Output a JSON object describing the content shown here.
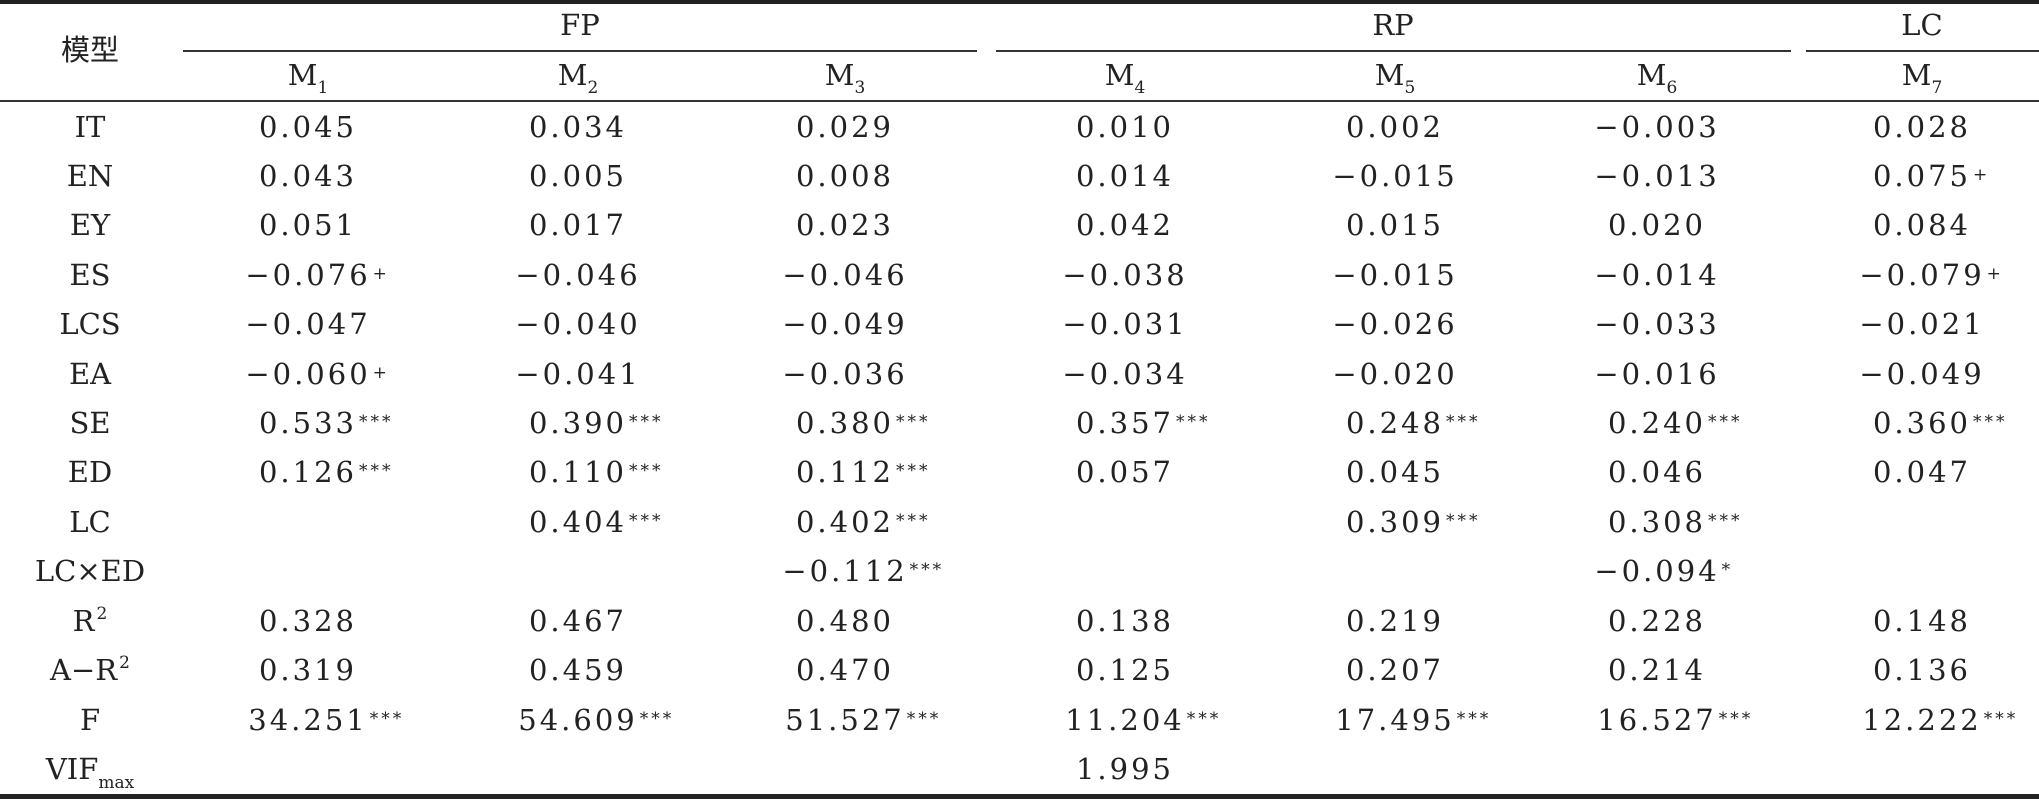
{
  "table": {
    "corner": "模型",
    "groups": [
      {
        "label": "FP"
      },
      {
        "label": "RP"
      },
      {
        "label": "LC"
      }
    ],
    "models": [
      {
        "base": "M",
        "sub": "1"
      },
      {
        "base": "M",
        "sub": "2"
      },
      {
        "base": "M",
        "sub": "3"
      },
      {
        "base": "M",
        "sub": "4"
      },
      {
        "base": "M",
        "sub": "5"
      },
      {
        "base": "M",
        "sub": "6"
      },
      {
        "base": "M",
        "sub": "7"
      }
    ],
    "rows": [
      {
        "label": "IT",
        "label_sup": "",
        "label_sub": "",
        "cells": [
          {
            "v": "0.045",
            "s": ""
          },
          {
            "v": "0.034",
            "s": ""
          },
          {
            "v": "0.029",
            "s": ""
          },
          {
            "v": "0.010",
            "s": ""
          },
          {
            "v": "0.002",
            "s": ""
          },
          {
            "v": "−0.003",
            "s": ""
          },
          {
            "v": "0.028",
            "s": ""
          }
        ]
      },
      {
        "label": "EN",
        "label_sup": "",
        "label_sub": "",
        "cells": [
          {
            "v": "0.043",
            "s": ""
          },
          {
            "v": "0.005",
            "s": ""
          },
          {
            "v": "0.008",
            "s": ""
          },
          {
            "v": "0.014",
            "s": ""
          },
          {
            "v": "−0.015",
            "s": ""
          },
          {
            "v": "−0.013",
            "s": ""
          },
          {
            "v": "0.075",
            "s": "+"
          }
        ]
      },
      {
        "label": "EY",
        "label_sup": "",
        "label_sub": "",
        "cells": [
          {
            "v": "0.051",
            "s": ""
          },
          {
            "v": "0.017",
            "s": ""
          },
          {
            "v": "0.023",
            "s": ""
          },
          {
            "v": "0.042",
            "s": ""
          },
          {
            "v": "0.015",
            "s": ""
          },
          {
            "v": "0.020",
            "s": ""
          },
          {
            "v": "0.084",
            "s": ""
          }
        ]
      },
      {
        "label": "ES",
        "label_sup": "",
        "label_sub": "",
        "cells": [
          {
            "v": "−0.076",
            "s": "+"
          },
          {
            "v": "−0.046",
            "s": ""
          },
          {
            "v": "−0.046",
            "s": ""
          },
          {
            "v": "−0.038",
            "s": ""
          },
          {
            "v": "−0.015",
            "s": ""
          },
          {
            "v": "−0.014",
            "s": ""
          },
          {
            "v": "−0.079",
            "s": "+"
          }
        ]
      },
      {
        "label": "LCS",
        "label_sup": "",
        "label_sub": "",
        "cells": [
          {
            "v": "−0.047",
            "s": ""
          },
          {
            "v": "−0.040",
            "s": ""
          },
          {
            "v": "−0.049",
            "s": ""
          },
          {
            "v": "−0.031",
            "s": ""
          },
          {
            "v": "−0.026",
            "s": ""
          },
          {
            "v": "−0.033",
            "s": ""
          },
          {
            "v": "−0.021",
            "s": ""
          }
        ]
      },
      {
        "label": "EA",
        "label_sup": "",
        "label_sub": "",
        "cells": [
          {
            "v": "−0.060",
            "s": "+"
          },
          {
            "v": "−0.041",
            "s": ""
          },
          {
            "v": "−0.036",
            "s": ""
          },
          {
            "v": "−0.034",
            "s": ""
          },
          {
            "v": "−0.020",
            "s": ""
          },
          {
            "v": "−0.016",
            "s": ""
          },
          {
            "v": "−0.049",
            "s": ""
          }
        ]
      },
      {
        "label": "SE",
        "label_sup": "",
        "label_sub": "",
        "cells": [
          {
            "v": "0.533",
            "s": "***"
          },
          {
            "v": "0.390",
            "s": "***"
          },
          {
            "v": "0.380",
            "s": "***"
          },
          {
            "v": "0.357",
            "s": "***"
          },
          {
            "v": "0.248",
            "s": "***"
          },
          {
            "v": "0.240",
            "s": "***"
          },
          {
            "v": "0.360",
            "s": "***"
          }
        ]
      },
      {
        "label": "ED",
        "label_sup": "",
        "label_sub": "",
        "cells": [
          {
            "v": "0.126",
            "s": "***"
          },
          {
            "v": "0.110",
            "s": "***"
          },
          {
            "v": "0.112",
            "s": "***"
          },
          {
            "v": "0.057",
            "s": ""
          },
          {
            "v": "0.045",
            "s": ""
          },
          {
            "v": "0.046",
            "s": ""
          },
          {
            "v": "0.047",
            "s": ""
          }
        ]
      },
      {
        "label": "LC",
        "label_sup": "",
        "label_sub": "",
        "cells": [
          {
            "v": "",
            "s": ""
          },
          {
            "v": "0.404",
            "s": "***"
          },
          {
            "v": "0.402",
            "s": "***"
          },
          {
            "v": "",
            "s": ""
          },
          {
            "v": "0.309",
            "s": "***"
          },
          {
            "v": "0.308",
            "s": "***"
          },
          {
            "v": "",
            "s": ""
          }
        ]
      },
      {
        "label": "LC×ED",
        "label_sup": "",
        "label_sub": "",
        "cells": [
          {
            "v": "",
            "s": ""
          },
          {
            "v": "",
            "s": ""
          },
          {
            "v": "−0.112",
            "s": "***"
          },
          {
            "v": "",
            "s": ""
          },
          {
            "v": "",
            "s": ""
          },
          {
            "v": "−0.094",
            "s": "*"
          },
          {
            "v": "",
            "s": ""
          }
        ]
      },
      {
        "label": "R",
        "label_sup": "2",
        "label_sub": "",
        "cells": [
          {
            "v": "0.328",
            "s": ""
          },
          {
            "v": "0.467",
            "s": ""
          },
          {
            "v": "0.480",
            "s": ""
          },
          {
            "v": "0.138",
            "s": ""
          },
          {
            "v": "0.219",
            "s": ""
          },
          {
            "v": "0.228",
            "s": ""
          },
          {
            "v": "0.148",
            "s": ""
          }
        ]
      },
      {
        "label": "A−R",
        "label_sup": "2",
        "label_sub": "",
        "cells": [
          {
            "v": "0.319",
            "s": ""
          },
          {
            "v": "0.459",
            "s": ""
          },
          {
            "v": "0.470",
            "s": ""
          },
          {
            "v": "0.125",
            "s": ""
          },
          {
            "v": "0.207",
            "s": ""
          },
          {
            "v": "0.214",
            "s": ""
          },
          {
            "v": "0.136",
            "s": ""
          }
        ]
      },
      {
        "label": "F",
        "label_sup": "",
        "label_sub": "",
        "cells": [
          {
            "v": "34.251",
            "s": "***"
          },
          {
            "v": "54.609",
            "s": "***"
          },
          {
            "v": "51.527",
            "s": "***"
          },
          {
            "v": "11.204",
            "s": "***"
          },
          {
            "v": "17.495",
            "s": "***"
          },
          {
            "v": "16.527",
            "s": "***"
          },
          {
            "v": "12.222",
            "s": "***"
          }
        ]
      },
      {
        "label": "VIF",
        "label_sup": "",
        "label_sub": "max",
        "cells": [
          {
            "v": "",
            "s": ""
          },
          {
            "v": "",
            "s": ""
          },
          {
            "v": "",
            "s": ""
          },
          {
            "v": "1.995",
            "s": ""
          },
          {
            "v": "",
            "s": ""
          },
          {
            "v": "",
            "s": ""
          },
          {
            "v": "",
            "s": ""
          }
        ]
      }
    ]
  }
}
